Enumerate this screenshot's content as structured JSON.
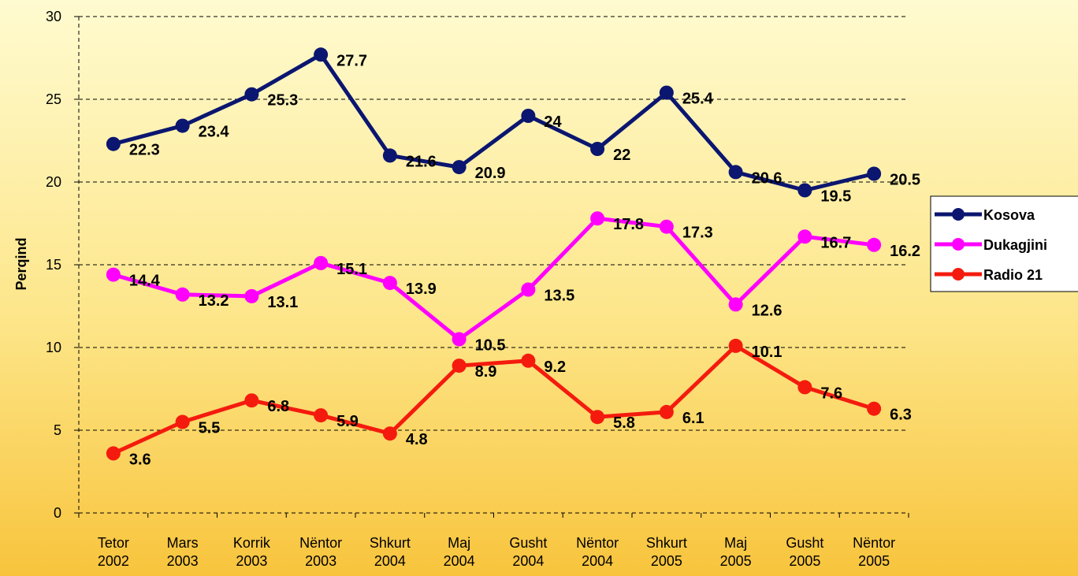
{
  "chart_data": {
    "type": "line",
    "y_label": "Perqind",
    "categories": [
      "Tetor 2002",
      "Mars 2003",
      "Korrik 2003",
      "Nëntor 2003",
      "Shkurt 2004",
      "Maj 2004",
      "Gusht 2004",
      "Nëntor 2004",
      "Shkurt 2005",
      "Maj 2005",
      "Gusht 2005",
      "Nëntor 2005"
    ],
    "series": [
      {
        "name": "Kosova",
        "color": "#0b1670",
        "values": [
          22.3,
          23.4,
          25.3,
          27.7,
          21.6,
          20.9,
          24,
          22,
          25.4,
          20.6,
          19.5,
          20.5
        ]
      },
      {
        "name": "Dukagjini",
        "color": "#ff00ff",
        "values": [
          14.4,
          13.2,
          13.1,
          15.1,
          13.9,
          10.5,
          13.5,
          17.8,
          17.3,
          12.6,
          16.7,
          16.2
        ]
      },
      {
        "name": "Radio 21",
        "color": "#f41b0e",
        "values": [
          3.6,
          5.5,
          6.8,
          5.9,
          4.8,
          8.9,
          9.2,
          5.8,
          6.1,
          10.1,
          7.6,
          6.3
        ]
      }
    ],
    "ylim": [
      0,
      30
    ],
    "yticks": [
      0,
      5,
      10,
      15,
      20,
      25,
      30
    ],
    "grid": true,
    "legend": "right"
  }
}
